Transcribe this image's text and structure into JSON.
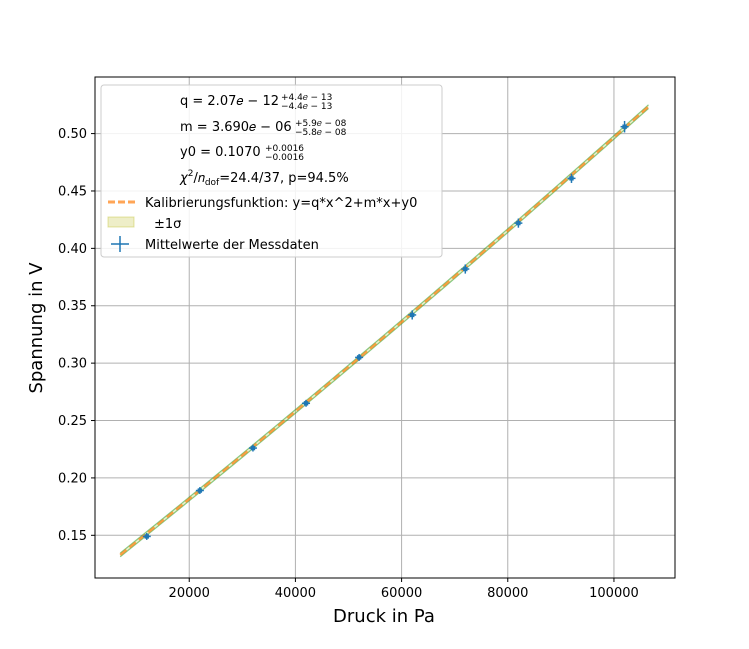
{
  "chart_data": {
    "type": "scatter",
    "xlabel": "Druck in Pa",
    "ylabel": "Spannung in V",
    "xlim": [
      2250,
      111500
    ],
    "ylim": [
      0.1128,
      0.5493
    ],
    "x_ticks": [
      20000,
      40000,
      60000,
      80000,
      100000
    ],
    "x_tick_labels": [
      "20000",
      "40000",
      "60000",
      "80000",
      "100000"
    ],
    "y_ticks": [
      0.15,
      0.2,
      0.25,
      0.3,
      0.35,
      0.4,
      0.45,
      0.5
    ],
    "y_tick_labels": [
      "0.15",
      "0.20",
      "0.25",
      "0.30",
      "0.35",
      "0.40",
      "0.45",
      "0.50"
    ],
    "grid": true,
    "legend_position": "top-left",
    "fit": {
      "name": "Kalibrierungsfunktion: y=q*x^2+m*x+y0",
      "q": 2.07e-12,
      "m": 3.69e-06,
      "y0": 0.107,
      "x_range": [
        7000,
        106500
      ],
      "color": "#ff7f0e"
    },
    "band": {
      "name": "±1σ",
      "sigma": 0.0016,
      "color": "#bcbd22"
    },
    "series": [
      {
        "name": "Mittelwerte der Messdaten",
        "color": "#1f77b4",
        "x": [
          12000,
          22000,
          32000,
          42000,
          52000,
          62000,
          72000,
          82000,
          92000,
          102000
        ],
        "y": [
          0.149,
          0.189,
          0.226,
          0.265,
          0.305,
          0.342,
          0.382,
          0.422,
          0.461,
          0.506
        ],
        "yerr": [
          0.003,
          0.003,
          0.003,
          0.003,
          0.003,
          0.004,
          0.004,
          0.004,
          0.004,
          0.005
        ]
      }
    ],
    "annotations": {
      "q": {
        "main": "q = 2.07𝑒 − 12",
        "sup": "+4.4𝑒 − 13",
        "sub": "−4.4𝑒 − 13"
      },
      "m": {
        "main": "m = 3.690𝑒 − 06",
        "sup": "+5.9𝑒 − 08",
        "sub": "−5.8𝑒 − 08"
      },
      "y0": {
        "main": "y0 = 0.1070",
        "sup": "+0.0016",
        "sub": "−0.0016"
      },
      "chi": {
        "chi": "χ",
        "exp": "2",
        "slash": "/𝑛",
        "dof": "dof",
        "rest": "=24.4/37, p=94.5%"
      }
    }
  }
}
